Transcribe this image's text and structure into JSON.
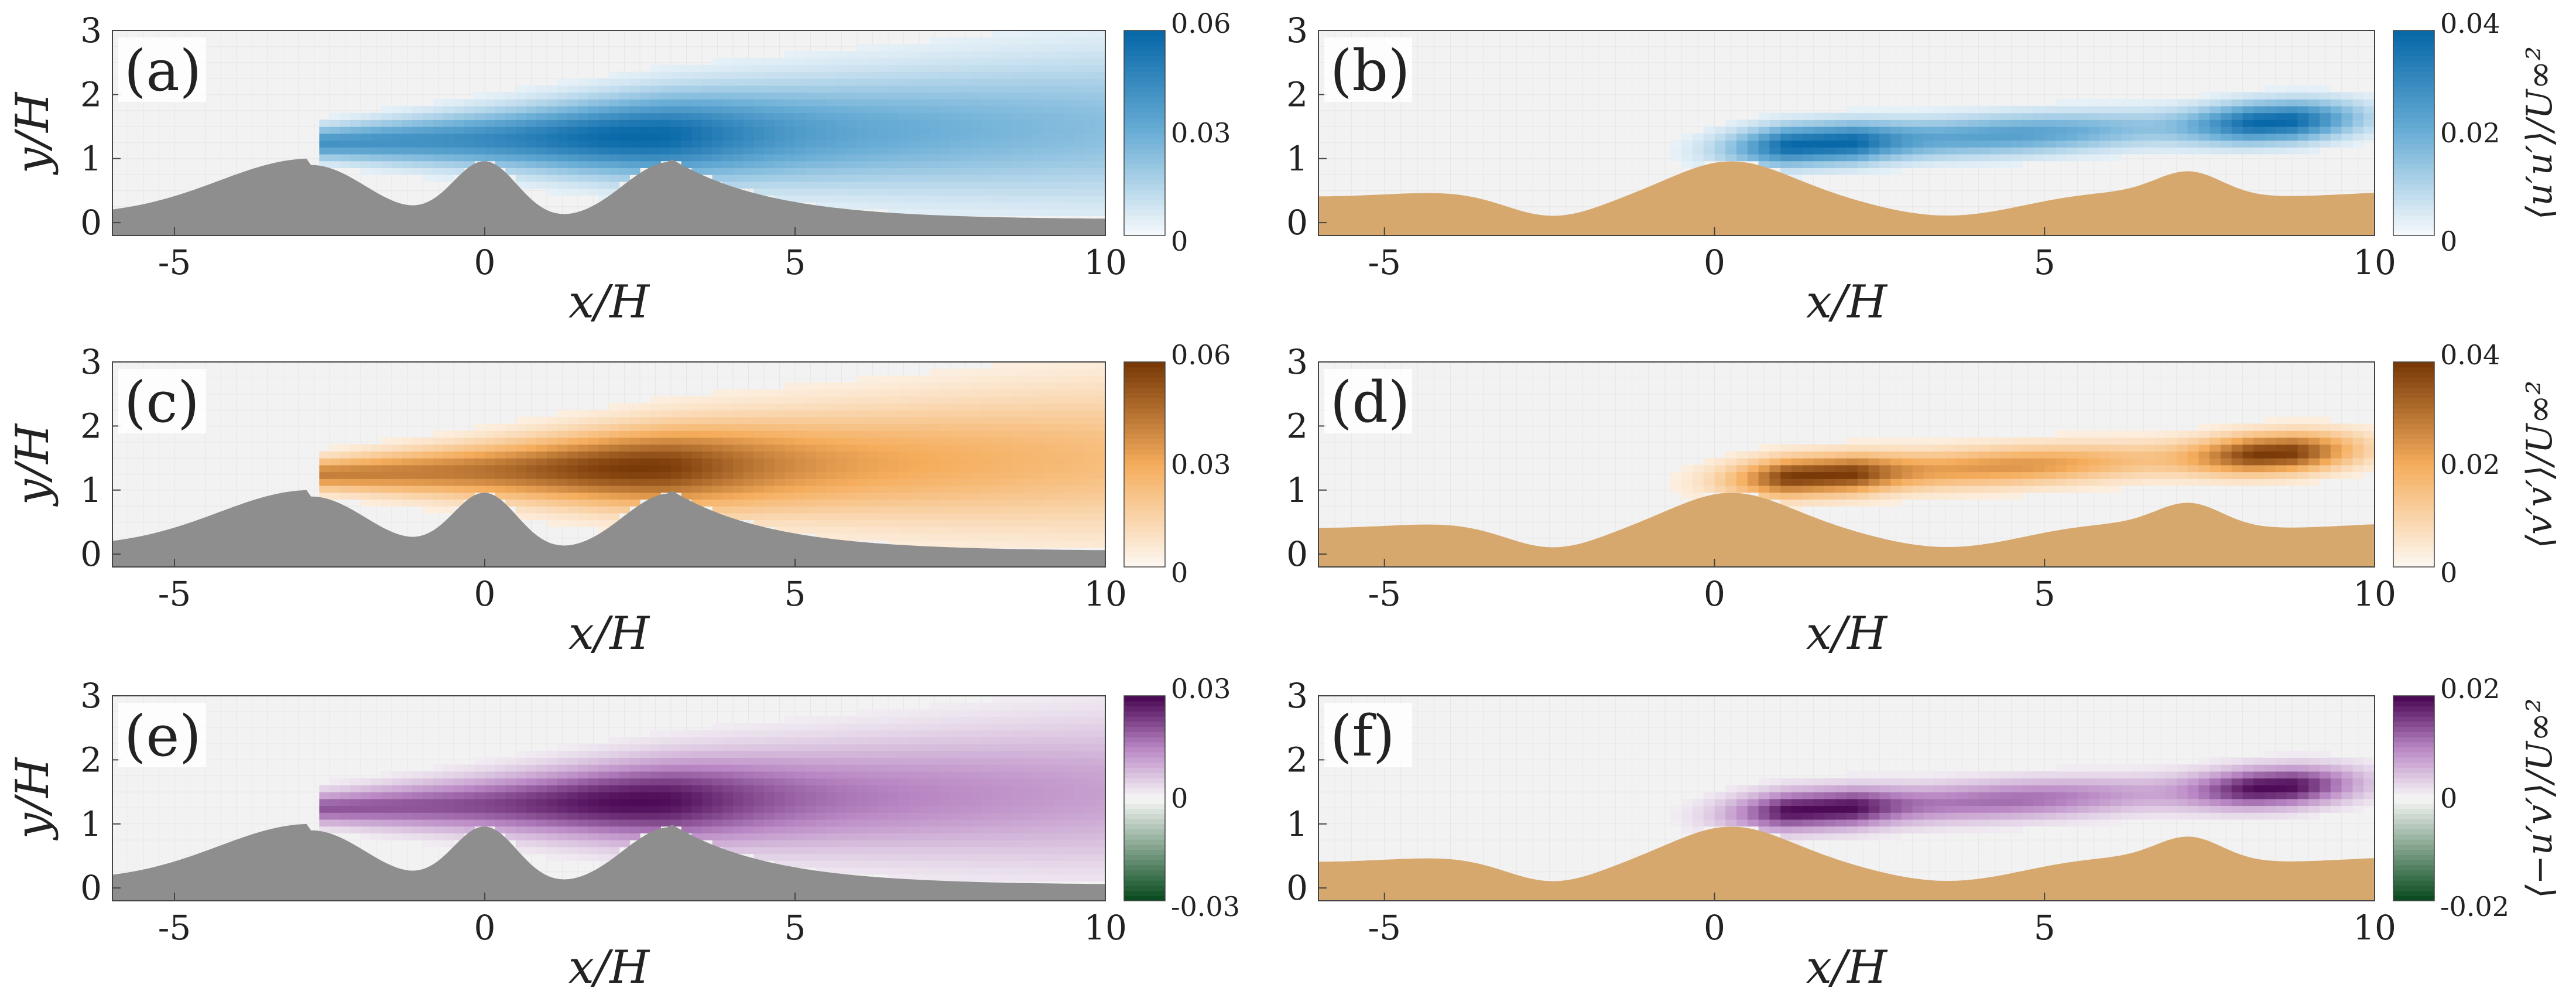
{
  "figure_type": "contour maps of Reynolds stress components over three-hill and dune topography",
  "chart_data": [
    {
      "type": "heatmap",
      "panel": "(a)",
      "field": "u'u'",
      "topography": "three-hill",
      "colormap": "blue",
      "xlabel": "x/H",
      "ylabel": "y/H",
      "xlim": [
        -6,
        10
      ],
      "ylim": [
        -0.2,
        3
      ],
      "xticks": [
        "-5",
        "0",
        "5",
        "10"
      ],
      "yticks": [
        "0",
        "1",
        "2",
        "3"
      ],
      "colorbar": {
        "ticks": [
          "0",
          "0.03",
          "0.06"
        ],
        "range": [
          0,
          0.06
        ],
        "label": ""
      }
    },
    {
      "type": "heatmap",
      "panel": "(b)",
      "field": "u'u'",
      "topography": "dunes",
      "colormap": "blue",
      "xlabel": "x/H",
      "ylabel": "",
      "xlim": [
        -6,
        10
      ],
      "ylim": [
        -0.2,
        3
      ],
      "xticks": [
        "-5",
        "0",
        "5",
        "10"
      ],
      "yticks": [
        "0",
        "1",
        "2",
        "3"
      ],
      "colorbar": {
        "ticks": [
          "0",
          "0.02",
          "0.04"
        ],
        "range": [
          0,
          0.04
        ],
        "label": "⟨u′u′⟩/U∞²"
      }
    },
    {
      "type": "heatmap",
      "panel": "(c)",
      "field": "v'v'",
      "topography": "three-hill",
      "colormap": "orange",
      "xlabel": "x/H",
      "ylabel": "y/H",
      "xlim": [
        -6,
        10
      ],
      "ylim": [
        -0.2,
        3
      ],
      "xticks": [
        "-5",
        "0",
        "5",
        "10"
      ],
      "yticks": [
        "0",
        "1",
        "2",
        "3"
      ],
      "colorbar": {
        "ticks": [
          "0",
          "0.03",
          "0.06"
        ],
        "range": [
          0,
          0.06
        ],
        "label": ""
      }
    },
    {
      "type": "heatmap",
      "panel": "(d)",
      "field": "v'v'",
      "topography": "dunes",
      "colormap": "orange",
      "xlabel": "x/H",
      "ylabel": "",
      "xlim": [
        -6,
        10
      ],
      "ylim": [
        -0.2,
        3
      ],
      "xticks": [
        "-5",
        "0",
        "5",
        "10"
      ],
      "yticks": [
        "0",
        "1",
        "2",
        "3"
      ],
      "colorbar": {
        "ticks": [
          "0",
          "0.02",
          "0.04"
        ],
        "range": [
          0,
          0.04
        ],
        "label": "⟨v′v′⟩/U∞²"
      }
    },
    {
      "type": "heatmap",
      "panel": "(e)",
      "field": "-u'v'",
      "topography": "three-hill",
      "colormap": "diverging purple-green",
      "xlabel": "x/H",
      "ylabel": "y/H",
      "xlim": [
        -6,
        10
      ],
      "ylim": [
        -0.2,
        3
      ],
      "xticks": [
        "-5",
        "0",
        "5",
        "10"
      ],
      "yticks": [
        "0",
        "1",
        "2",
        "3"
      ],
      "colorbar": {
        "ticks": [
          "-0.03",
          "0",
          "0.03"
        ],
        "range": [
          -0.03,
          0.03
        ],
        "label": ""
      }
    },
    {
      "type": "heatmap",
      "panel": "(f)",
      "field": "-u'v'",
      "topography": "dunes",
      "colormap": "diverging purple-green",
      "xlabel": "x/H",
      "ylabel": "",
      "xlim": [
        -6,
        10
      ],
      "ylim": [
        -0.2,
        3
      ],
      "xticks": [
        "-5",
        "0",
        "5",
        "10"
      ],
      "yticks": [
        "0",
        "1",
        "2",
        "3"
      ],
      "colorbar": {
        "ticks": [
          "-0.02",
          "0",
          "0.02"
        ],
        "range": [
          -0.02,
          0.02
        ],
        "label": "⟨−u′v′⟩/U∞²"
      }
    }
  ],
  "colors": {
    "blue_max": "#0868a8",
    "orange_max": "#7a3a08",
    "purple_max": "#4d0a56",
    "green_min": "#0b4d20",
    "hill_gray": "#8e8e8e",
    "sand": "#d6a86e",
    "background": "#f2f2f2"
  }
}
